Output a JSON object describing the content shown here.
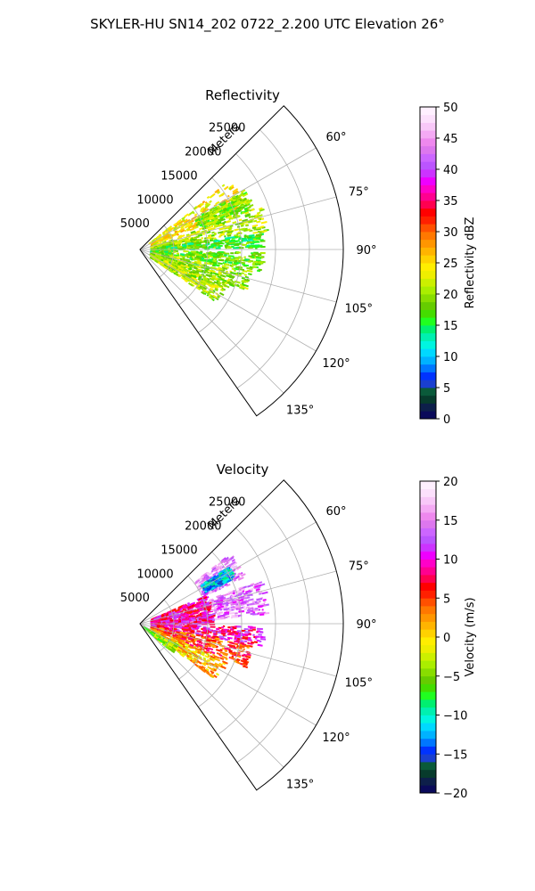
{
  "suptitle": "SKYLER-HU  SN14_202  0722_2.200 UTC Elevation 26°",
  "chart_data": [
    {
      "type": "polar-sector",
      "title": "Reflectivity",
      "range_axis_label": "Meters",
      "range_ticks": [
        5000,
        10000,
        15000,
        20000,
        25000
      ],
      "range_tick_labels": [
        "5000",
        "10000",
        "15000",
        "20000",
        "25000"
      ],
      "range_max": 30000,
      "azimuth_range": [
        45,
        145
      ],
      "azimuth_ticks": [
        60,
        75,
        90,
        105,
        120,
        135
      ],
      "azimuth_tick_labels": [
        "60°",
        "75°",
        "90°",
        "105°",
        "120°",
        "135°"
      ],
      "grid": true,
      "colorbar": {
        "label": "Reflectivity dBZ",
        "range": [
          0,
          50
        ],
        "ticks": [
          0,
          5,
          10,
          15,
          20,
          25,
          30,
          35,
          40,
          45,
          50
        ],
        "tick_labels": [
          "0",
          "5",
          "10",
          "15",
          "20",
          "25",
          "30",
          "35",
          "40",
          "45",
          "50"
        ],
        "colors": [
          "#0a0a5a",
          "#0d1f4a",
          "#073b2c",
          "#0a5a3a",
          "#1a3fd0",
          "#0033ff",
          "#0077ff",
          "#00b2ff",
          "#00d9ff",
          "#00f5e0",
          "#00f0b0",
          "#00f070",
          "#20ff20",
          "#44dd00",
          "#66cc00",
          "#88dd00",
          "#aaee00",
          "#ccf000",
          "#eeee00",
          "#ffee00",
          "#ffd200",
          "#ffb400",
          "#ff9600",
          "#ff7800",
          "#ff5000",
          "#ff2000",
          "#ff0000",
          "#ff0050",
          "#ff0090",
          "#ff00c8",
          "#ee00ff",
          "#cc33ff",
          "#bb55ff",
          "#cc66ff",
          "#dd77ee",
          "#ee88ee",
          "#f4aaf4",
          "#f8c8f8",
          "#fce0fc",
          "#fff0ff"
        ]
      },
      "echo_regions": [
        {
          "az": [
            52,
            68
          ],
          "r": [
            0.05,
            0.55
          ],
          "v": 24
        },
        {
          "az": [
            60,
            70
          ],
          "r": [
            0.3,
            0.58
          ],
          "v": 19
        },
        {
          "az": [
            70,
            82
          ],
          "r": [
            0.05,
            0.62
          ],
          "v": 21
        },
        {
          "az": [
            82,
            89
          ],
          "r": [
            0.05,
            0.6
          ],
          "v": 17
        },
        {
          "az": [
            91,
            100
          ],
          "r": [
            0.05,
            0.6
          ],
          "v": 18
        },
        {
          "az": [
            100,
            112
          ],
          "r": [
            0.05,
            0.55
          ],
          "v": 20
        },
        {
          "az": [
            112,
            124
          ],
          "r": [
            0.05,
            0.45
          ],
          "v": 21
        }
      ]
    },
    {
      "type": "polar-sector",
      "title": "Velocity",
      "range_axis_label": "Meters",
      "range_ticks": [
        5000,
        10000,
        15000,
        20000,
        25000
      ],
      "range_tick_labels": [
        "5000",
        "10000",
        "15000",
        "20000",
        "25000"
      ],
      "range_max": 30000,
      "azimuth_range": [
        45,
        145
      ],
      "azimuth_ticks": [
        60,
        75,
        90,
        105,
        120,
        135
      ],
      "azimuth_tick_labels": [
        "60°",
        "75°",
        "90°",
        "105°",
        "120°",
        "135°"
      ],
      "grid": true,
      "colorbar": {
        "label": "Velocity (m/s)",
        "range": [
          -20,
          20
        ],
        "ticks": [
          -20,
          -15,
          -10,
          -5,
          0,
          5,
          10,
          15,
          20
        ],
        "tick_labels": [
          "−20",
          "−15",
          "−10",
          "−5",
          "0",
          "5",
          "10",
          "15",
          "20"
        ],
        "colors": [
          "#0a0a5a",
          "#0d1f4a",
          "#073b2c",
          "#0a5a3a",
          "#1a3fd0",
          "#0033ff",
          "#0077ff",
          "#00b2ff",
          "#00d9ff",
          "#00f5e0",
          "#00f0b0",
          "#00f070",
          "#20ff20",
          "#44dd00",
          "#66cc00",
          "#88dd00",
          "#aaee00",
          "#ccf000",
          "#eeee00",
          "#ffee00",
          "#ffd200",
          "#ffb400",
          "#ff9600",
          "#ff7800",
          "#ff5000",
          "#ff2000",
          "#ff0000",
          "#ff0050",
          "#ff0090",
          "#ff00c8",
          "#ee00ff",
          "#cc33ff",
          "#bb55ff",
          "#cc66ff",
          "#dd77ee",
          "#ee88ee",
          "#f4aaf4",
          "#f8c8f8",
          "#fce0fc",
          "#fff0ff"
        ]
      },
      "echo_regions": [
        {
          "az": [
            52,
            66
          ],
          "r": [
            0.33,
            0.55
          ],
          "v": 15
        },
        {
          "az": [
            57,
            64
          ],
          "r": [
            0.35,
            0.5
          ],
          "v": -12
        },
        {
          "az": [
            66,
            82
          ],
          "r": [
            0.05,
            0.35
          ],
          "v": 9
        },
        {
          "az": [
            70,
            86
          ],
          "r": [
            0.35,
            0.62
          ],
          "v": 14
        },
        {
          "az": [
            82,
            90
          ],
          "r": [
            0.05,
            0.35
          ],
          "v": 10
        },
        {
          "az": [
            91,
            100
          ],
          "r": [
            0.05,
            0.6
          ],
          "v": 9
        },
        {
          "az": [
            100,
            112
          ],
          "r": [
            0.05,
            0.55
          ],
          "v": 5
        },
        {
          "az": [
            112,
            126
          ],
          "r": [
            0.05,
            0.45
          ],
          "v": 1
        },
        {
          "az": [
            118,
            130
          ],
          "r": [
            0.02,
            0.2
          ],
          "v": -4
        }
      ]
    }
  ]
}
